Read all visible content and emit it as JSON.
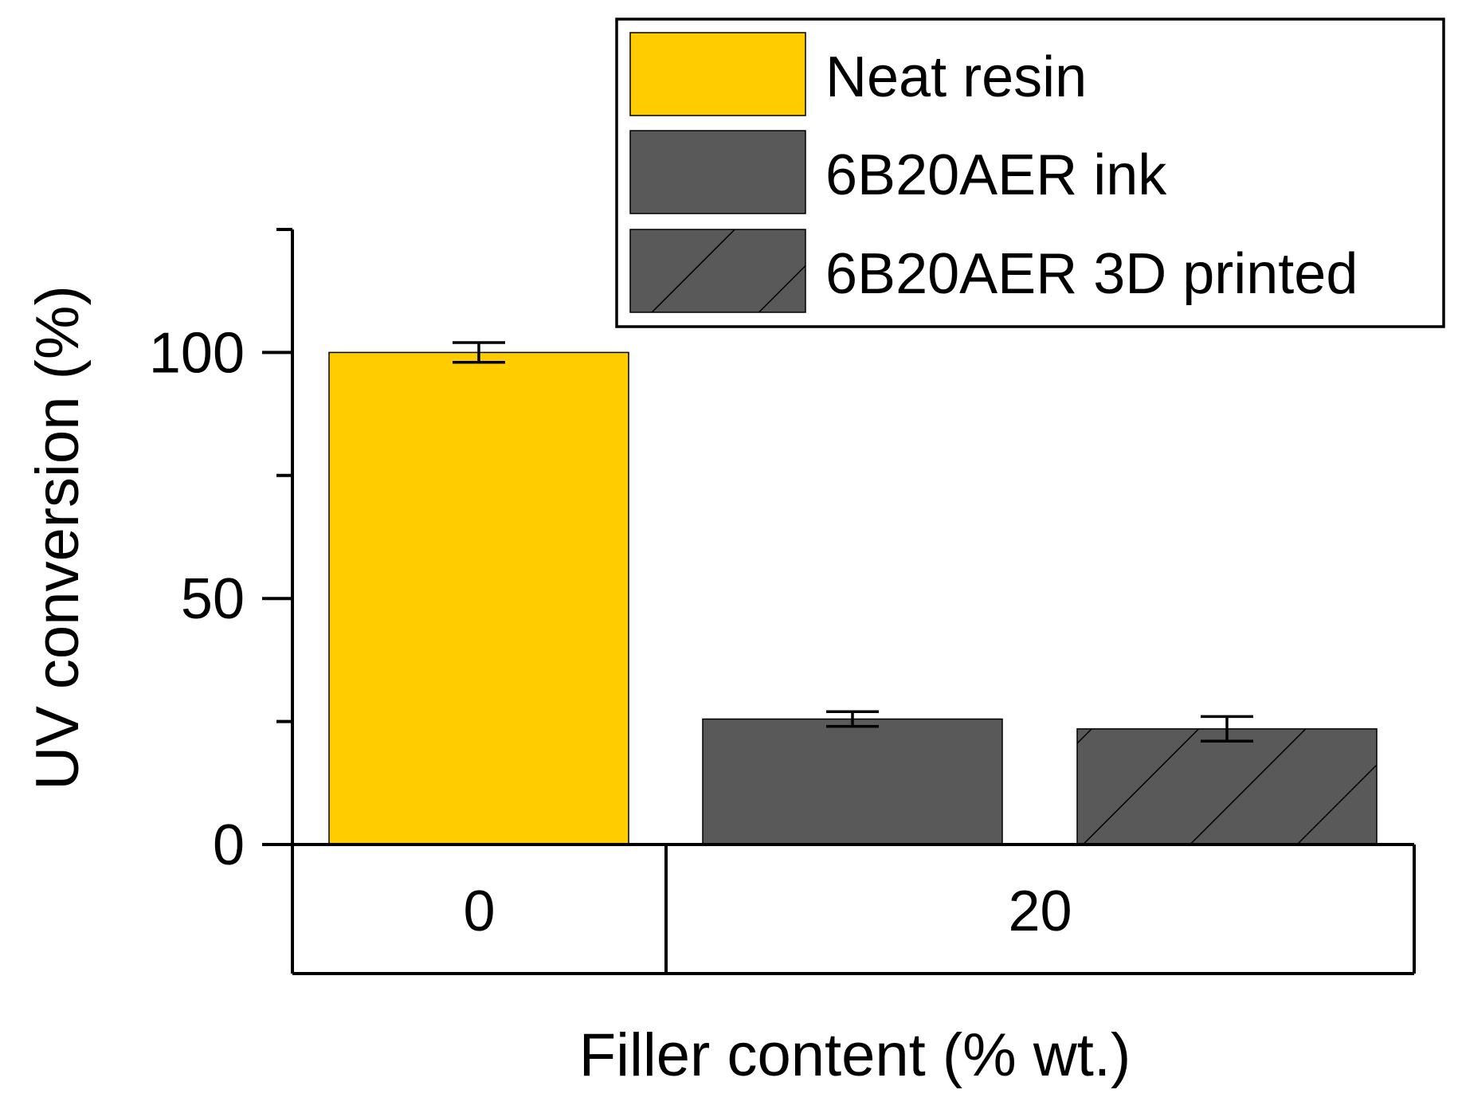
{
  "chart_data": {
    "type": "bar",
    "title": "",
    "xlabel": "Filler content (% wt.)",
    "ylabel": "UV conversion (%)",
    "ylim": [
      0,
      125
    ],
    "yticks_major": [
      0,
      50,
      100
    ],
    "yticks_minor": [
      25,
      75,
      125
    ],
    "y_tick_labels": [
      "0",
      "50",
      "100"
    ],
    "groups": [
      {
        "label": "0",
        "series_indices": [
          0
        ]
      },
      {
        "label": "20",
        "series_indices": [
          1,
          2
        ]
      }
    ],
    "series": [
      {
        "name": "Neat resin",
        "group": "0",
        "value": 100,
        "error": 2,
        "color": "#FFCC00",
        "pattern": "solid"
      },
      {
        "name": "6B20AER ink",
        "group": "20",
        "value": 25.5,
        "error": 1.5,
        "color": "#595959",
        "pattern": "solid"
      },
      {
        "name": "6B20AER 3D printed",
        "group": "20",
        "value": 23.5,
        "error": 2.5,
        "color": "#595959",
        "pattern": "hatched"
      }
    ],
    "legend": {
      "position": "top-right",
      "entries": [
        "Neat resin",
        "6B20AER ink",
        "6B20AER 3D printed"
      ]
    },
    "grid": false
  }
}
